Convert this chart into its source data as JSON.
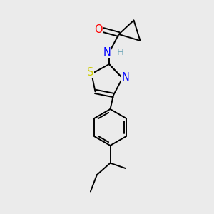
{
  "bg_color": "#ebebeb",
  "bond_color": "#000000",
  "line_width": 1.4,
  "atom_colors": {
    "O": "#ff0000",
    "N": "#0000ff",
    "S": "#cccc00",
    "H": "#7ab",
    "C": "#000000"
  },
  "font_size": 9.5
}
